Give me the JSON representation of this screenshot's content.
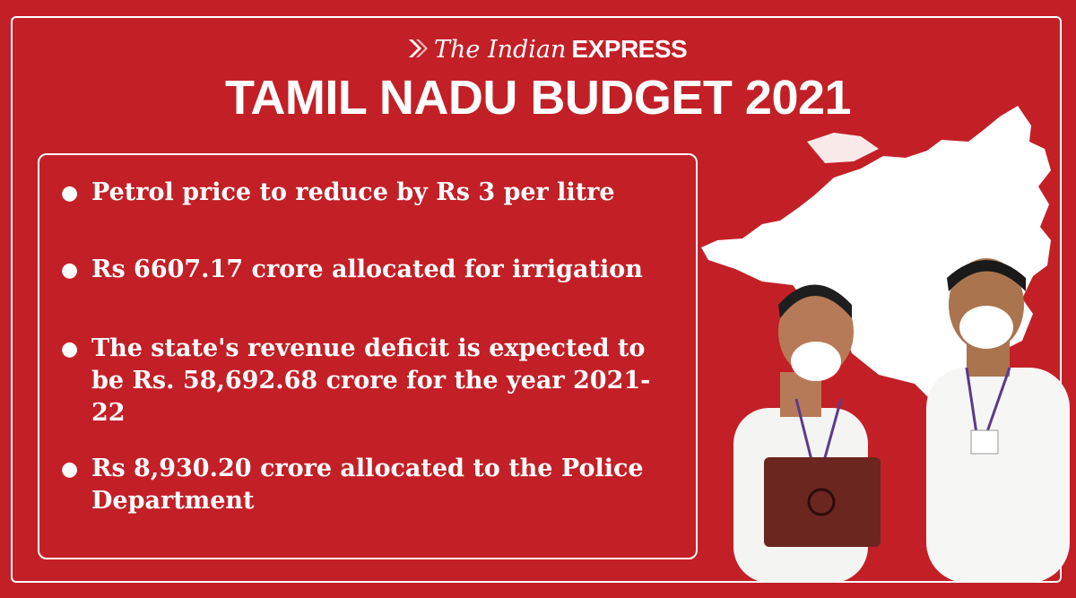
{
  "brand": {
    "logo_the": "The Indian",
    "logo_express": "EXPRESS",
    "logo_icon": "express-flame-logo-icon"
  },
  "headline": "TAMIL NADU BUDGET 2021",
  "points": [
    "Petrol price to reduce by Rs 3 per litre",
    "Rs 6607.17 crore allocated for irrigation",
    "The state's revenue deficit is expected to be Rs. 58,692.68 crore for the year 2021-22",
    "Rs 8,930.20 crore allocated to the Police Department"
  ],
  "colors": {
    "background": "#c31f27",
    "text": "#ffffff",
    "map": "#ffffff"
  }
}
